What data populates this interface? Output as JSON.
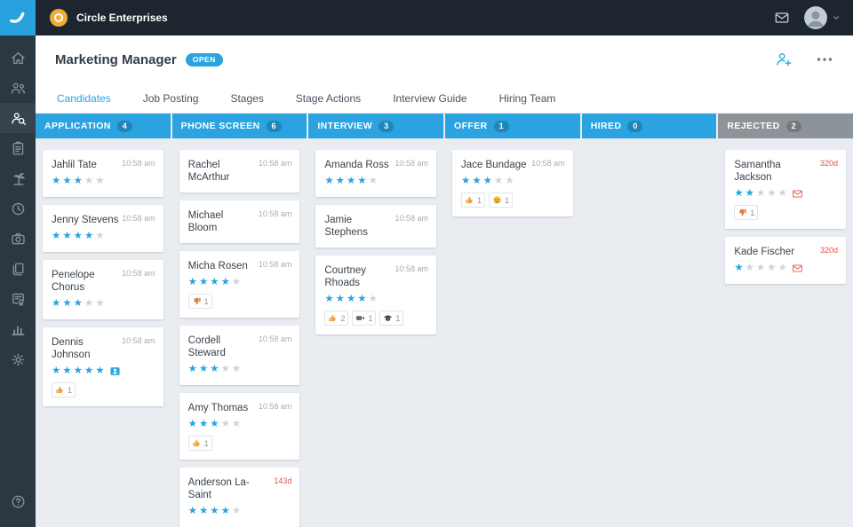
{
  "colors": {
    "accent": "#2aa3e0",
    "topbar_bg": "#1d262e",
    "sidebar_bg": "#2b3842",
    "board_bg": "#e9edf1",
    "rejected_header": "#8d9499",
    "overdue_red": "#e0544c",
    "star_filled": "#2aa3e0",
    "star_empty": "#cbd5db"
  },
  "topbar": {
    "company_name": "Circle Enterprises"
  },
  "sidebar": {
    "items": [
      {
        "name": "home"
      },
      {
        "name": "people"
      },
      {
        "name": "candidate-search",
        "active": true
      },
      {
        "name": "clipboard"
      },
      {
        "name": "palm-tree"
      },
      {
        "name": "clock"
      },
      {
        "name": "camera"
      },
      {
        "name": "documents"
      },
      {
        "name": "certificate"
      },
      {
        "name": "bar-chart"
      },
      {
        "name": "gear"
      }
    ],
    "bottom_items": [
      {
        "name": "help"
      }
    ]
  },
  "header": {
    "title": "Marketing Manager",
    "status_badge": "OPEN"
  },
  "tabs": [
    {
      "label": "Candidates",
      "active": true
    },
    {
      "label": "Job Posting"
    },
    {
      "label": "Stages"
    },
    {
      "label": "Stage Actions"
    },
    {
      "label": "Interview Guide"
    },
    {
      "label": "Hiring Team"
    }
  ],
  "board": {
    "columns": [
      {
        "name": "APPLICATION",
        "count": 4,
        "cards": [
          {
            "name": "Jahlil Tate",
            "name_lines": [
              "Jahlil Tate"
            ],
            "time": "10:58 am",
            "stars": 3
          },
          {
            "name": "Jenny Stevens",
            "name_lines": [
              "Jenny Stevens"
            ],
            "time": "10:58 am",
            "stars": 4
          },
          {
            "name": "Penelope Chorus",
            "name_lines": [
              "Penelope",
              "Chorus"
            ],
            "time": "10:58 am",
            "stars": 3
          },
          {
            "name": "Dennis Johnson",
            "name_lines": [
              "Dennis",
              "Johnson"
            ],
            "time": "10:58 am",
            "stars": 5,
            "inline_icon": "id-card",
            "badges": [
              {
                "icon": "thumbs-up",
                "count": 1
              }
            ]
          }
        ]
      },
      {
        "name": "PHONE SCREEN",
        "count": 6,
        "cards": [
          {
            "name": "Rachel McArthur",
            "name_lines": [
              "Rachel",
              "McArthur"
            ],
            "time": "10:58 am",
            "stars": 0
          },
          {
            "name": "Michael Bloom",
            "name_lines": [
              "Michael",
              "Bloom"
            ],
            "time": "10:58 am",
            "stars": 0
          },
          {
            "name": "Micha Rosen",
            "name_lines": [
              "Micha Rosen"
            ],
            "time": "10:58 am",
            "stars": 4,
            "badges": [
              {
                "icon": "thumbs-down",
                "count": 1
              }
            ]
          },
          {
            "name": "Cordell Steward",
            "name_lines": [
              "Cordell",
              "Steward"
            ],
            "time": "10:58 am",
            "stars": 3
          },
          {
            "name": "Amy Thomas",
            "name_lines": [
              "Amy Thomas"
            ],
            "time": "10:58 am",
            "stars": 3,
            "badges": [
              {
                "icon": "thumbs-up",
                "count": 1
              }
            ]
          },
          {
            "name": "Anderson La-Saint",
            "name_lines": [
              "Anderson La-",
              "Saint"
            ],
            "time": "143d",
            "overdue": true,
            "stars": 4
          }
        ]
      },
      {
        "name": "INTERVIEW",
        "count": 3,
        "cards": [
          {
            "name": "Amanda Ross",
            "name_lines": [
              "Amanda Ross"
            ],
            "time": "10:58 am",
            "stars": 4
          },
          {
            "name": "Jamie Stephens",
            "name_lines": [
              "Jamie",
              "Stephens"
            ],
            "time": "10:58 am",
            "stars": 0
          },
          {
            "name": "Courtney Rhoads",
            "name_lines": [
              "Courtney",
              "Rhoads"
            ],
            "time": "10:58 am",
            "stars": 4,
            "badges": [
              {
                "icon": "thumbs-up",
                "count": 2
              },
              {
                "icon": "video",
                "count": 1
              },
              {
                "icon": "grad-cap",
                "count": 1
              }
            ]
          }
        ]
      },
      {
        "name": "OFFER",
        "count": 1,
        "cards": [
          {
            "name": "Jace Bundage",
            "name_lines": [
              "Jace Bundage"
            ],
            "time": "10:58 am",
            "stars": 3,
            "badges": [
              {
                "icon": "thumbs-up",
                "count": 1
              },
              {
                "icon": "smile",
                "count": 1
              }
            ]
          }
        ]
      },
      {
        "name": "HIRED",
        "count": 0,
        "cards": []
      },
      {
        "name": "REJECTED",
        "count": 2,
        "style": "gray",
        "cards": [
          {
            "name": "Samantha Jackson",
            "name_lines": [
              "Samantha",
              "Jackson"
            ],
            "time": "320d",
            "overdue": true,
            "stars": 2,
            "inline_icon": "mail",
            "badges": [
              {
                "icon": "thumbs-down",
                "count": 1
              }
            ]
          },
          {
            "name": "Kade Fischer",
            "name_lines": [
              "Kade Fischer"
            ],
            "time": "320d",
            "overdue": true,
            "stars": 1,
            "inline_icon": "mail"
          }
        ]
      }
    ]
  }
}
